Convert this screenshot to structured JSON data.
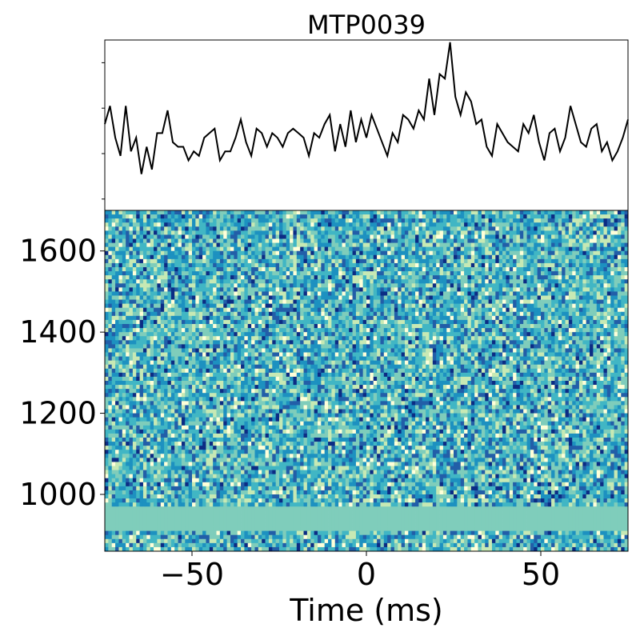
{
  "chart_data": [
    {
      "type": "line",
      "title": "MTP0039",
      "xlabel": "",
      "ylabel": "",
      "xlim": [
        -75,
        75
      ],
      "ylim": [
        -0.5,
        3.25
      ],
      "y_ticks_labeled": false,
      "line_color": "#000000",
      "x": [
        -75.0,
        -73.5,
        -72.0,
        -70.5,
        -69.0,
        -67.5,
        -66.0,
        -64.5,
        -63.0,
        -61.5,
        -60.0,
        -58.5,
        -57.0,
        -55.5,
        -54.0,
        -52.5,
        -51.0,
        -49.5,
        -48.0,
        -46.5,
        -45.0,
        -43.5,
        -42.0,
        -40.5,
        -39.0,
        -37.5,
        -36.0,
        -34.5,
        -33.0,
        -31.5,
        -30.0,
        -28.5,
        -27.0,
        -25.5,
        -24.0,
        -22.5,
        -21.0,
        -19.5,
        -18.0,
        -16.5,
        -15.0,
        -13.5,
        -12.0,
        -10.5,
        -9.0,
        -7.5,
        -6.0,
        -4.5,
        -3.0,
        -1.5,
        0.0,
        1.5,
        3.0,
        4.5,
        6.0,
        7.5,
        9.0,
        10.5,
        12.0,
        13.5,
        15.0,
        16.5,
        18.0,
        19.5,
        21.0,
        22.5,
        24.0,
        25.5,
        27.0,
        28.5,
        30.0,
        31.5,
        33.0,
        34.5,
        36.0,
        37.5,
        39.0,
        40.5,
        42.0,
        43.5,
        45.0,
        46.5,
        48.0,
        49.5,
        51.0,
        52.5,
        54.0,
        55.5,
        57.0,
        58.5,
        60.0,
        61.5,
        63.0,
        64.5,
        66.0,
        67.5,
        69.0,
        70.5,
        72.0,
        73.5,
        75.0
      ],
      "y": [
        1.4,
        1.8,
        1.1,
        0.7,
        1.8,
        0.8,
        1.1,
        0.3,
        0.9,
        0.4,
        1.2,
        1.2,
        1.7,
        1.0,
        0.9,
        0.9,
        0.6,
        0.8,
        0.7,
        1.1,
        1.2,
        1.3,
        0.6,
        0.8,
        0.8,
        1.1,
        1.5,
        1.0,
        0.7,
        1.3,
        1.2,
        0.9,
        1.2,
        1.1,
        0.9,
        1.2,
        1.3,
        1.2,
        1.1,
        0.7,
        1.2,
        1.1,
        1.4,
        1.6,
        0.8,
        1.4,
        0.9,
        1.7,
        1.0,
        1.5,
        1.1,
        1.6,
        1.3,
        1.0,
        0.7,
        1.2,
        1.0,
        1.6,
        1.5,
        1.3,
        1.7,
        1.5,
        2.4,
        1.6,
        2.5,
        2.4,
        3.2,
        2.0,
        1.6,
        2.1,
        1.9,
        1.4,
        1.5,
        0.9,
        0.7,
        1.4,
        1.2,
        1.0,
        0.9,
        0.8,
        1.4,
        1.2,
        1.6,
        1.0,
        0.6,
        1.2,
        1.3,
        0.8,
        1.1,
        1.8,
        1.4,
        1.0,
        0.9,
        1.3,
        1.4,
        0.8,
        1.0,
        0.6,
        0.8,
        1.1,
        1.5
      ]
    },
    {
      "type": "heatmap",
      "xlabel": "Time (ms)",
      "ylabel": "",
      "xlim": [
        -75,
        75
      ],
      "ylim": [
        860,
        1700
      ],
      "x_ticks": [
        -50,
        0,
        50
      ],
      "x_tick_labels": [
        "−50",
        "0",
        "50"
      ],
      "y_ticks": [
        1000,
        1200,
        1400,
        1600
      ],
      "y_tick_labels": [
        "1000",
        "1200",
        "1400",
        "1600"
      ],
      "colormap": "YlGnBu",
      "colormap_colors": [
        "#ffffd9",
        "#c7e9b4",
        "#7fcdbb",
        "#41b6c4",
        "#1d91c0",
        "#225ea8",
        "#0c2c84"
      ],
      "grid_columns": 150,
      "grid_rows": 84,
      "value_range": [
        0,
        1
      ],
      "masked_band": {
        "frequency_range": [
          905,
          965
        ],
        "color": "#7fcdbb"
      },
      "note_values": "randomized per-pixel noise intensity"
    }
  ]
}
